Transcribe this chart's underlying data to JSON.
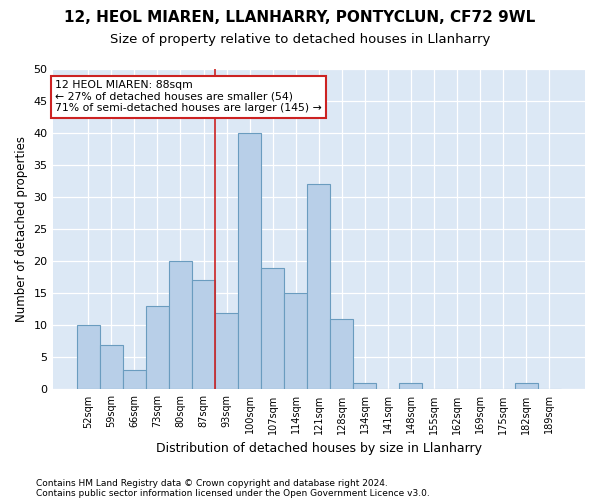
{
  "title1": "12, HEOL MIAREN, LLANHARRY, PONTYCLUN, CF72 9WL",
  "title2": "Size of property relative to detached houses in Llanharry",
  "xlabel": "Distribution of detached houses by size in Llanharry",
  "ylabel": "Number of detached properties",
  "footnote1": "Contains HM Land Registry data © Crown copyright and database right 2024.",
  "footnote2": "Contains public sector information licensed under the Open Government Licence v3.0.",
  "categories": [
    "52sqm",
    "59sqm",
    "66sqm",
    "73sqm",
    "80sqm",
    "87sqm",
    "93sqm",
    "100sqm",
    "107sqm",
    "114sqm",
    "121sqm",
    "128sqm",
    "134sqm",
    "141sqm",
    "148sqm",
    "155sqm",
    "162sqm",
    "169sqm",
    "175sqm",
    "182sqm",
    "189sqm"
  ],
  "values": [
    10,
    7,
    3,
    13,
    20,
    17,
    12,
    40,
    19,
    15,
    32,
    11,
    1,
    0,
    1,
    0,
    0,
    0,
    0,
    1,
    0
  ],
  "bar_color": "#b8cfe8",
  "bar_edge_color": "#6a9cbf",
  "vline_x": 5.5,
  "vline_color": "#cc2222",
  "annotation_line1": "12 HEOL MIAREN: 88sqm",
  "annotation_line2": "← 27% of detached houses are smaller (54)",
  "annotation_line3": "71% of semi-detached houses are larger (145) →",
  "annotation_box_color": "#ffffff",
  "annotation_box_edge": "#cc2222",
  "ylim": [
    0,
    50
  ],
  "yticks": [
    0,
    5,
    10,
    15,
    20,
    25,
    30,
    35,
    40,
    45,
    50
  ],
  "bg_color": "#dce8f5",
  "grid_color": "#ffffff",
  "fig_bg_color": "#ffffff",
  "title1_fontsize": 11,
  "title2_fontsize": 9.5,
  "xlabel_fontsize": 9,
  "ylabel_fontsize": 8.5,
  "footnote_fontsize": 6.5
}
